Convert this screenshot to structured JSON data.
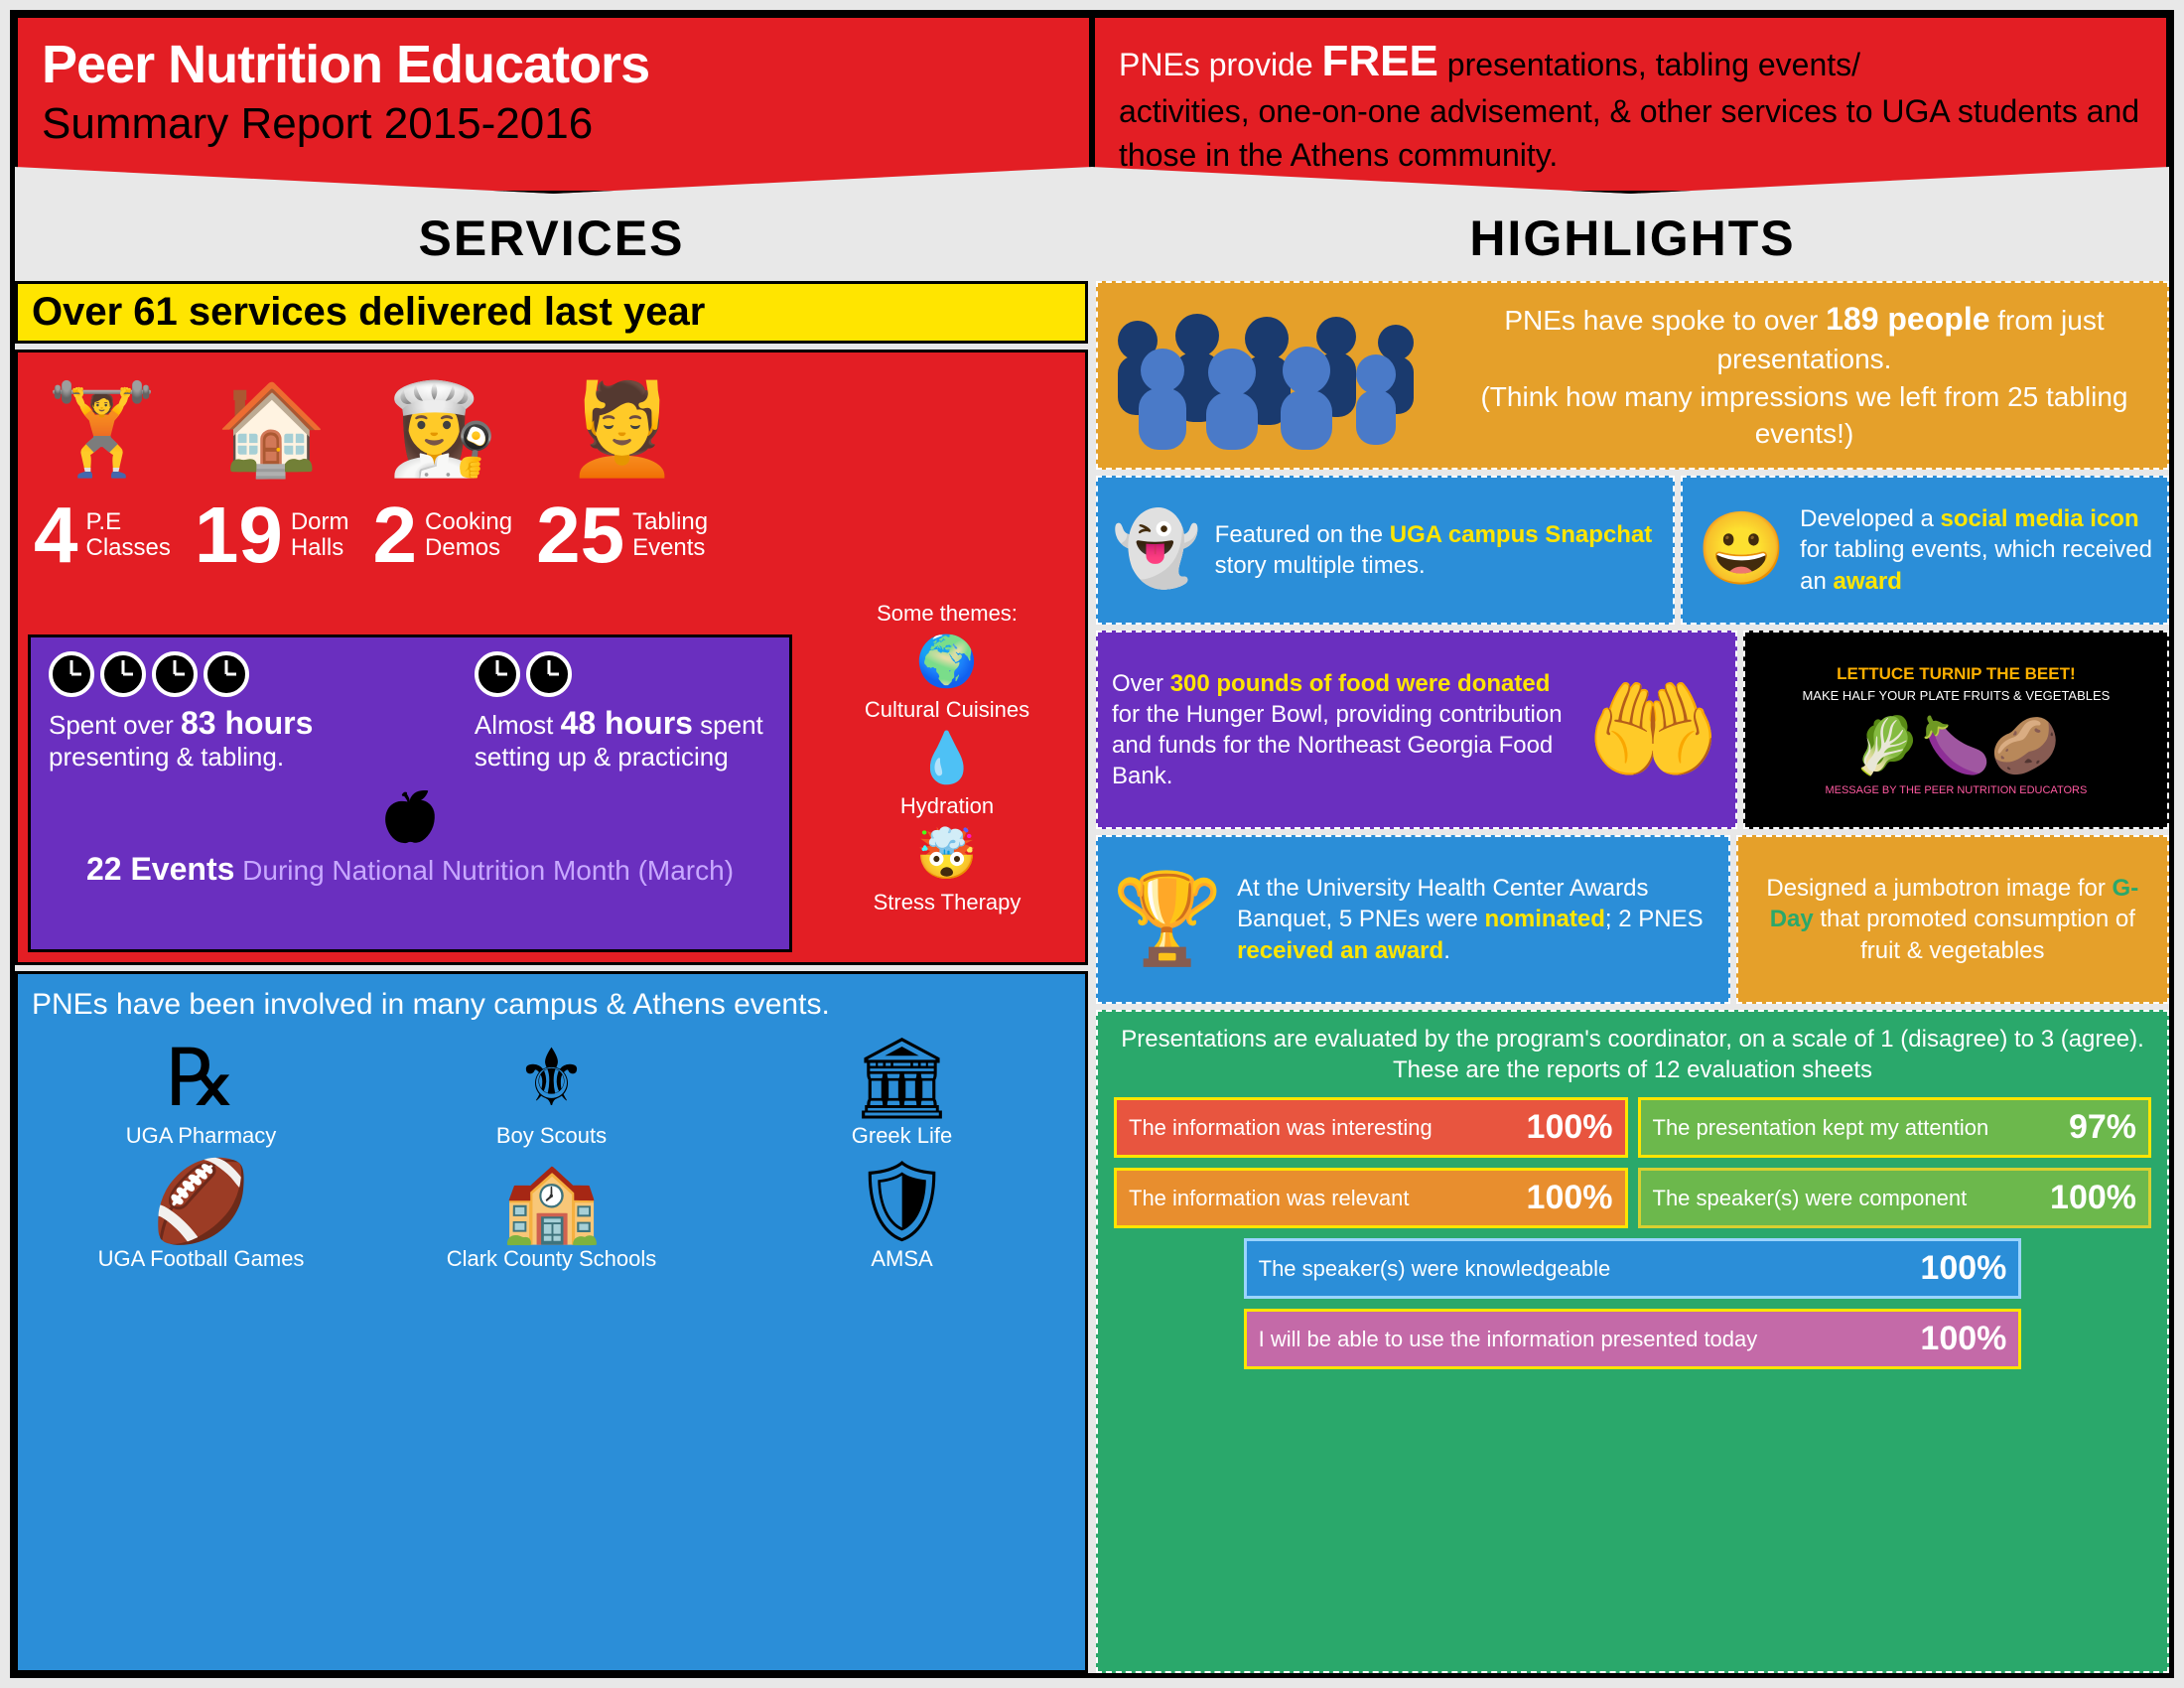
{
  "header": {
    "title": "Peer Nutrition Educators",
    "subtitle": "Summary Report 2015-2016",
    "desc_pre": "PNEs provide ",
    "desc_free": "FREE",
    "desc_mid": " presentations, tabling events/",
    "desc_rest": "activities, one-on-one advisement, & other services to UGA students and those in the Athens community."
  },
  "services": {
    "title": "SERVICES",
    "yellow": "Over 61 services delivered last year",
    "stats": [
      {
        "num": "4",
        "label": "P.E\nClasses",
        "icon": "🏋"
      },
      {
        "num": "19",
        "label": "Dorm\nHalls",
        "icon": "🏠"
      },
      {
        "num": "2",
        "label": "Cooking\nDemos",
        "icon": "👩‍🍳"
      },
      {
        "num": "25",
        "label": "Tabling\nEvents",
        "icon": "💆"
      }
    ],
    "themes_label": "Some themes:",
    "themes": [
      {
        "icon": "🌍",
        "label": "Cultural Cuisines"
      },
      {
        "icon": "💧",
        "label": "Hydration"
      },
      {
        "icon": "🤯",
        "label": "Stress Therapy"
      }
    ],
    "purple": {
      "line1_pre": "Spent over ",
      "line1_big": "83 hours",
      "line1_post": " presenting & tabling.",
      "line2_pre": "Almost ",
      "line2_big": "48 hours",
      "line2_post": " spent setting up & practicing",
      "events_big": "22 Events",
      "events_rest": " During National Nutrition Month (March)"
    },
    "blue": {
      "lead": "PNEs have been involved in many campus & Athens events.",
      "events": [
        {
          "label": "UGA Pharmacy",
          "icon": "℞"
        },
        {
          "label": "Boy Scouts",
          "icon": "⚜"
        },
        {
          "label": "Greek Life",
          "icon": "🏛"
        },
        {
          "label": "UGA Football Games",
          "icon": "🏈"
        },
        {
          "label": "Clark County Schools",
          "icon": "🏫"
        },
        {
          "label": "AMSA",
          "icon": "🛡"
        }
      ]
    }
  },
  "highlights": {
    "title": "HIGHLIGHTS",
    "orange": {
      "pre": "PNEs have spoke to over ",
      "big": "189 people",
      "post": " from just presentations.",
      "paren": "(Think how many impressions we left from 25 tabling events!)"
    },
    "snapchat": {
      "icon": "👻",
      "pre": "Featured on the ",
      "hl": "UGA campus Snapchat",
      "post": " story multiple times."
    },
    "mascot": {
      "icon": "😀",
      "pre": "Developed a ",
      "hl1": "social media icon",
      "mid": " for tabling events, which received an ",
      "hl2": "award"
    },
    "food": {
      "pre": "Over ",
      "hl": "300 pounds of food were donated",
      "post": " for the Hunger Bowl, providing contribution and funds for the Northeast Georgia Food Bank.",
      "icon": "🤲"
    },
    "poster": {
      "title": "LETTUCE TURNIP THE BEET!",
      "sub": "MAKE HALF YOUR PLATE FRUITS & VEGETABLES",
      "footer": "MESSAGE BY THE PEER NUTRITION EDUCATORS"
    },
    "awards": {
      "icon": "🏆",
      "pre": "At the University Health Center Awards Banquet, 5 PNEs were ",
      "hl1": "nominated",
      "mid": "; 2 PNES ",
      "hl2": "received an award",
      "post": "."
    },
    "jumbo": {
      "pre": "Designed a jumbotron image for ",
      "hl": "G-Day",
      "post": " that promoted consumption of fruit & vegetables"
    },
    "green": {
      "lead": "Presentations are evaluated by the program's coordinator, on a scale of 1 (disagree) to 3 (agree). These are the reports of 12 evaluation sheets",
      "evals": [
        {
          "label": "The information was interesting",
          "pct": "100%",
          "bg": "#e8553f",
          "border": "#ffe500"
        },
        {
          "label": "The presentation kept my attention",
          "pct": "97%",
          "bg": "#6cb84c",
          "border": "#ffe500"
        },
        {
          "label": "The information was relevant",
          "pct": "100%",
          "bg": "#e88e2e",
          "border": "#ffe500"
        },
        {
          "label": "The speaker(s) were component",
          "pct": "100%",
          "bg": "#6cb84c",
          "border": "#d8d030"
        },
        {
          "label": "The speaker(s) were knowledgeable",
          "pct": "100%",
          "bg": "#2b8ed8",
          "border": "#9bd4ff"
        },
        {
          "label": "I will be able to use the information presented today",
          "pct": "100%",
          "bg": "#c46aa8",
          "border": "#ffe500"
        }
      ]
    }
  },
  "colors": {
    "red": "#e31e24",
    "yellow": "#ffe500",
    "purple": "#6a2fbf",
    "blue": "#2b8ed8",
    "orange": "#e5a02a",
    "green": "#2aa86b"
  }
}
